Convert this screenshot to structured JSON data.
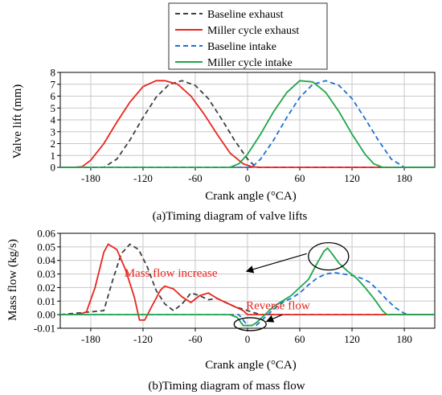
{
  "legend": {
    "placement": "top-center",
    "entries": [
      {
        "label": "Baseline exhaust",
        "color": "#404040",
        "dash": "dashed"
      },
      {
        "label": "Miller cycle exhaust",
        "color": "#e8261f",
        "dash": "solid"
      },
      {
        "label": "Baseline intake",
        "color": "#1f6fd6",
        "dash": "dashed"
      },
      {
        "label": "Miller cycle intake",
        "color": "#1fa64a",
        "dash": "solid"
      }
    ]
  },
  "chart_data": [
    {
      "type": "line",
      "caption": "(a)Timing diagram of valve lifts",
      "xlabel": "Crank angle (°CA)",
      "ylabel": "Valve lift (mm)",
      "xlim": [
        -215,
        215
      ],
      "ylim": [
        0,
        8
      ],
      "xticks": [
        -180,
        -120,
        -60,
        0,
        60,
        120,
        180
      ],
      "yticks": [
        0,
        1,
        2,
        3,
        4,
        5,
        6,
        7,
        8
      ],
      "grid": true,
      "series": [
        {
          "name": "Baseline exhaust",
          "color": "#404040",
          "dash": "dashed",
          "x": [
            -165,
            -150,
            -135,
            -120,
            -105,
            -90,
            -75,
            -60,
            -45,
            -30,
            -15,
            0,
            10
          ],
          "y": [
            0.0,
            0.7,
            2.3,
            4.2,
            5.9,
            7.0,
            7.3,
            6.9,
            5.8,
            4.1,
            2.3,
            0.7,
            0.0
          ]
        },
        {
          "name": "Miller cycle exhaust",
          "color": "#e8261f",
          "dash": "solid",
          "x": [
            -200,
            -190,
            -180,
            -165,
            -150,
            -135,
            -120,
            -105,
            -95,
            -80,
            -65,
            -50,
            -35,
            -20,
            -5,
            5,
            15
          ],
          "y": [
            0.0,
            0.05,
            0.6,
            2.0,
            3.8,
            5.5,
            6.8,
            7.3,
            7.3,
            7.0,
            6.0,
            4.5,
            2.8,
            1.2,
            0.3,
            0.05,
            0.0
          ]
        },
        {
          "name": "Baseline intake",
          "color": "#1f6fd6",
          "dash": "dashed",
          "x": [
            5,
            15,
            30,
            45,
            60,
            75,
            90,
            105,
            120,
            135,
            150,
            165,
            180
          ],
          "y": [
            0.0,
            0.7,
            2.3,
            4.2,
            5.9,
            7.0,
            7.3,
            6.9,
            5.8,
            4.1,
            2.3,
            0.7,
            0.0
          ]
        },
        {
          "name": "Miller cycle intake",
          "color": "#1fa64a",
          "dash": "solid",
          "x": [
            -20,
            -10,
            0,
            15,
            30,
            45,
            60,
            75,
            90,
            105,
            120,
            135,
            145,
            155
          ],
          "y": [
            0.0,
            0.3,
            1.1,
            2.8,
            4.7,
            6.3,
            7.3,
            7.2,
            6.3,
            4.7,
            2.8,
            1.1,
            0.3,
            0.0
          ]
        }
      ]
    },
    {
      "type": "line",
      "caption": "(b)Timing diagram of mass flow",
      "xlabel": "Crank angle (°CA)",
      "ylabel": "Mass flow (kg/s)",
      "xlim": [
        -215,
        215
      ],
      "ylim": [
        -0.01,
        0.06
      ],
      "xticks": [
        -180,
        -120,
        -60,
        0,
        60,
        120,
        180
      ],
      "yticks": [
        -0.01,
        0.0,
        0.01,
        0.02,
        0.03,
        0.04,
        0.05,
        0.06
      ],
      "ytick_labels": [
        "-0.01",
        "0.00",
        "0.01",
        "0.02",
        "0.03",
        "0.04",
        "0.05",
        "0.06"
      ],
      "grid": true,
      "annotations": [
        {
          "text": "Mass flow increase",
          "color": "#e8261f",
          "x": -88,
          "y": 0.028
        },
        {
          "text": "Reverse flow",
          "color": "#e8261f",
          "x": 35,
          "y": 0.004
        }
      ],
      "series": [
        {
          "name": "Baseline exhaust",
          "color": "#404040",
          "dash": "dashed",
          "x": [
            -165,
            -155,
            -145,
            -135,
            -125,
            -115,
            -105,
            -95,
            -85,
            -75,
            -65,
            -55,
            -45,
            -35,
            -25,
            -15,
            -5,
            5,
            15
          ],
          "y": [
            0.003,
            0.025,
            0.045,
            0.052,
            0.048,
            0.035,
            0.018,
            0.008,
            0.003,
            0.008,
            0.016,
            0.014,
            0.011,
            0.012,
            0.009,
            0.006,
            0.004,
            0.002,
            0.0
          ]
        },
        {
          "name": "Miller cycle exhaust",
          "color": "#e8261f",
          "dash": "solid",
          "x": [
            -195,
            -185,
            -175,
            -165,
            -160,
            -150,
            -140,
            -130,
            -124,
            -118,
            -110,
            -100,
            -95,
            -85,
            -75,
            -65,
            -55,
            -45,
            -35,
            -25,
            -15,
            -5,
            0
          ],
          "y": [
            0.0,
            0.002,
            0.02,
            0.046,
            0.052,
            0.048,
            0.033,
            0.013,
            -0.004,
            -0.004,
            0.006,
            0.018,
            0.021,
            0.019,
            0.013,
            0.009,
            0.014,
            0.016,
            0.012,
            0.009,
            0.006,
            0.003,
            0.0
          ]
        },
        {
          "name": "Baseline intake",
          "color": "#1f6fd6",
          "dash": "dashed",
          "x": [
            -10,
            0,
            10,
            20,
            30,
            40,
            50,
            60,
            70,
            80,
            90,
            100,
            110,
            120,
            130,
            140,
            150,
            160,
            170,
            180,
            185
          ],
          "y": [
            0.0,
            -0.008,
            -0.008,
            -0.002,
            0.004,
            0.009,
            0.012,
            0.016,
            0.022,
            0.027,
            0.03,
            0.031,
            0.03,
            0.029,
            0.027,
            0.024,
            0.018,
            0.011,
            0.005,
            0.001,
            0.0
          ]
        },
        {
          "name": "Miller cycle intake",
          "color": "#1fa64a",
          "dash": "solid",
          "x": [
            -20,
            -12,
            -5,
            0,
            5,
            10,
            20,
            30,
            40,
            50,
            60,
            70,
            80,
            88,
            92,
            97,
            105,
            115,
            125,
            135,
            145,
            155,
            160
          ],
          "y": [
            0.0,
            -0.002,
            -0.008,
            -0.008,
            -0.008,
            -0.006,
            0.0,
            0.006,
            0.01,
            0.014,
            0.02,
            0.026,
            0.038,
            0.047,
            0.049,
            0.045,
            0.038,
            0.032,
            0.027,
            0.02,
            0.012,
            0.003,
            0.0
          ]
        }
      ]
    }
  ]
}
